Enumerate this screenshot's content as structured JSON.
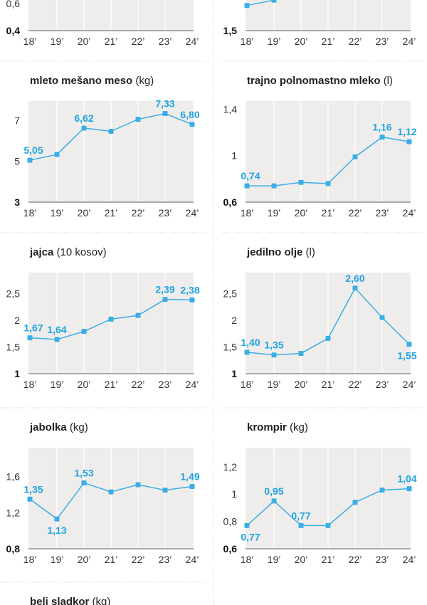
{
  "colors": {
    "line": "#3aaee6",
    "label": "#1fa4e2",
    "plot_bg": "#efedeb",
    "gridline": "#ffffff",
    "axis": "#a9a9a9"
  },
  "chart_data": [
    {
      "type": "line",
      "title": "",
      "unit": "",
      "categories": [
        "18’",
        "19’",
        "20’",
        "21’",
        "22’",
        "23’",
        "24’"
      ],
      "values": [
        null,
        null,
        null,
        null,
        null,
        null,
        null
      ],
      "labels": [],
      "yticks": [
        "0,4",
        "0,6"
      ],
      "ytick_values": [
        0.4,
        0.6
      ],
      "ylim": [
        0.4,
        1.15
      ],
      "grid": true
    },
    {
      "type": "line",
      "title": "",
      "unit": "",
      "categories": [
        "18’",
        "19’",
        "20’",
        "21’",
        "22’",
        "23’",
        "24’"
      ],
      "values": [
        1.97,
        2.07,
        null,
        null,
        null,
        null,
        null
      ],
      "labels": [],
      "yticks": [
        "1,5"
      ],
      "ytick_values": [
        1.5
      ],
      "ylim": [
        1.5,
        3.39
      ],
      "grid": true
    },
    {
      "type": "line",
      "title": "mleto mešano meso",
      "unit": "(kg)",
      "categories": [
        "18’",
        "19’",
        "20’",
        "21’",
        "22’",
        "23’",
        "24’"
      ],
      "values": [
        5.05,
        5.33,
        6.62,
        6.46,
        7.05,
        7.33,
        6.8
      ],
      "labels": [
        {
          "i": 0,
          "text": "5,05",
          "pos": "above"
        },
        {
          "i": 2,
          "text": "6,62",
          "pos": "above"
        },
        {
          "i": 5,
          "text": "7,33",
          "pos": "above"
        },
        {
          "i": 6,
          "text": "6,80",
          "pos": "above"
        }
      ],
      "yticks": [
        "3",
        "5",
        "7"
      ],
      "ytick_values": [
        3,
        5,
        7
      ],
      "ylim": [
        3,
        7.94
      ],
      "grid": true
    },
    {
      "type": "line",
      "title": "trajno polnomastno mleko",
      "unit": "(l)",
      "categories": [
        "18’",
        "19’",
        "20’",
        "21’",
        "22’",
        "23’",
        "24’"
      ],
      "values": [
        0.74,
        0.74,
        0.77,
        0.76,
        0.99,
        1.16,
        1.12
      ],
      "labels": [
        {
          "i": 0,
          "text": "0,74",
          "pos": "above"
        },
        {
          "i": 5,
          "text": "1,16",
          "pos": "above"
        },
        {
          "i": 6,
          "text": "1,12",
          "pos": "above"
        }
      ],
      "yticks": [
        "0,6",
        "1",
        "1,4"
      ],
      "ytick_values": [
        0.6,
        1,
        1.4
      ],
      "ylim": [
        0.6,
        1.47
      ],
      "grid": true
    },
    {
      "type": "line",
      "title": "jajca",
      "unit": "(10 kosov)",
      "categories": [
        "18’",
        "19’",
        "20’",
        "21’",
        "22’",
        "23’",
        "24’"
      ],
      "values": [
        1.67,
        1.64,
        1.79,
        2.02,
        2.09,
        2.39,
        2.38
      ],
      "labels": [
        {
          "i": 0,
          "text": "1,67",
          "pos": "above"
        },
        {
          "i": 1,
          "text": "1,64",
          "pos": "above"
        },
        {
          "i": 5,
          "text": "2,39",
          "pos": "above"
        },
        {
          "i": 6,
          "text": "2,38",
          "pos": "above"
        }
      ],
      "yticks": [
        "1",
        "1,5",
        "2",
        "2,5"
      ],
      "ytick_values": [
        1,
        1.5,
        2,
        2.5
      ],
      "ylim": [
        1,
        2.89
      ],
      "grid": true
    },
    {
      "type": "line",
      "title": "jedilno olje",
      "unit": "(l)",
      "categories": [
        "18’",
        "19’",
        "20’",
        "21’",
        "22’",
        "23’",
        "24’"
      ],
      "values": [
        1.4,
        1.35,
        1.38,
        1.66,
        2.6,
        2.05,
        1.55
      ],
      "labels": [
        {
          "i": 0,
          "text": "1,40",
          "pos": "above"
        },
        {
          "i": 1,
          "text": "1,35",
          "pos": "above"
        },
        {
          "i": 4,
          "text": "2,60",
          "pos": "above"
        },
        {
          "i": 6,
          "text": "1,55",
          "pos": "below"
        }
      ],
      "yticks": [
        "1",
        "1,5",
        "2",
        "2,5"
      ],
      "ytick_values": [
        1,
        1.5,
        2,
        2.5
      ],
      "ylim": [
        1,
        2.89
      ],
      "grid": true
    },
    {
      "type": "line",
      "title": "jabolka",
      "unit": "(kg)",
      "categories": [
        "18’",
        "19’",
        "20’",
        "21’",
        "22’",
        "23’",
        "24’"
      ],
      "values": [
        1.35,
        1.13,
        1.53,
        1.43,
        1.51,
        1.45,
        1.49
      ],
      "labels": [
        {
          "i": 0,
          "text": "1,35",
          "pos": "above"
        },
        {
          "i": 1,
          "text": "1,13",
          "pos": "below"
        },
        {
          "i": 2,
          "text": "1,53",
          "pos": "above"
        },
        {
          "i": 6,
          "text": "1,49",
          "pos": "above"
        }
      ],
      "yticks": [
        "0,8",
        "1,2",
        "1,6"
      ],
      "ytick_values": [
        0.8,
        1.2,
        1.6
      ],
      "ylim": [
        0.8,
        1.92
      ],
      "grid": true
    },
    {
      "type": "line",
      "title": "krompir",
      "unit": "(kg)",
      "categories": [
        "18’",
        "19’",
        "20’",
        "21’",
        "22’",
        "23’",
        "24’"
      ],
      "values": [
        0.77,
        0.95,
        0.77,
        0.77,
        0.94,
        1.03,
        1.04
      ],
      "labels": [
        {
          "i": 0,
          "text": "0,77",
          "pos": "below"
        },
        {
          "i": 1,
          "text": "0,95",
          "pos": "above"
        },
        {
          "i": 2,
          "text": "0,77",
          "pos": "above"
        },
        {
          "i": 6,
          "text": "1,04",
          "pos": "above"
        }
      ],
      "yticks": [
        "0,6",
        "0,8",
        "1",
        "1,2"
      ],
      "ytick_values": [
        0.6,
        0.8,
        1,
        1.2
      ],
      "ylim": [
        0.6,
        1.34
      ],
      "grid": true
    },
    {
      "type": "line",
      "title": "beli sladkor",
      "unit": "(kg)",
      "categories": [],
      "values": [],
      "labels": [],
      "yticks": [],
      "ytick_values": [],
      "ylim": [],
      "grid": true
    }
  ]
}
